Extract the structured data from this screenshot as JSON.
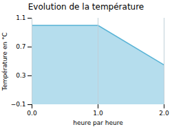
{
  "chart_data": {
    "type": "area",
    "title": "Evolution de la température",
    "xlabel": "heure par heure",
    "ylabel": "Température en °C",
    "x": [
      0,
      1,
      2
    ],
    "values": [
      1.0,
      1.0,
      0.45
    ],
    "color": "#5ab4d6",
    "xlim": [
      0,
      2
    ],
    "ylim": [
      -0.1,
      1.1
    ],
    "xticks": [
      0,
      1,
      2
    ],
    "yticks": [
      -0.1,
      0.3,
      0.7,
      1.1
    ],
    "grid": "x"
  }
}
